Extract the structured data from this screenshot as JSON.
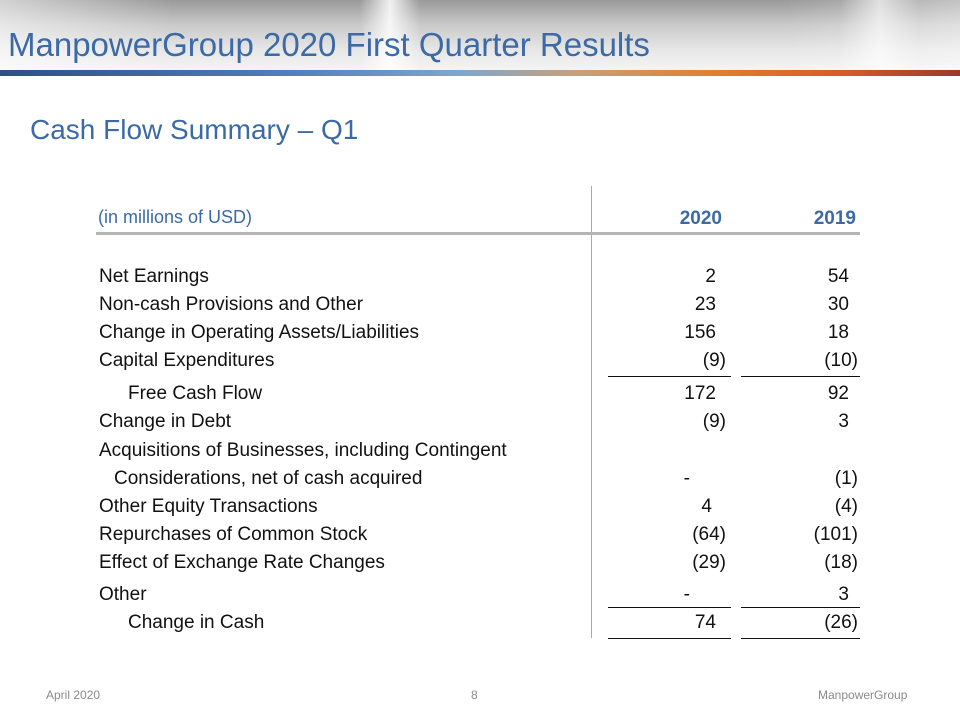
{
  "header": {
    "title": "ManpowerGroup 2020 First Quarter Results"
  },
  "subtitle": "Cash Flow Summary – Q1",
  "table": {
    "units_label": "(in millions of USD)",
    "columns": [
      "2020",
      "2019"
    ],
    "rows": [
      {
        "label": "Net Earnings",
        "v2020": "2",
        "v2019": "54"
      },
      {
        "label": "Non-cash Provisions and Other",
        "v2020": "23",
        "v2019": "30"
      },
      {
        "label": "Change in Operating Assets/Liabilities",
        "v2020": "156",
        "v2019": "18"
      },
      {
        "label": "Capital Expenditures",
        "v2020": "(9)",
        "v2019": "(10)"
      },
      {
        "label": "Free Cash Flow",
        "v2020": "172",
        "v2019": "92"
      },
      {
        "label": "Change in Debt",
        "v2020": "(9)",
        "v2019": "3"
      },
      {
        "label": "Acquisitions of Businesses, including Contingent",
        "v2020": "",
        "v2019": ""
      },
      {
        "label": "Considerations, net of cash acquired",
        "v2020": "-",
        "v2019": "(1)"
      },
      {
        "label": "Other Equity Transactions",
        "v2020": "4",
        "v2019": "(4)"
      },
      {
        "label": "Repurchases of Common Stock",
        "v2020": "(64)",
        "v2019": "(101)"
      },
      {
        "label": "Effect of Exchange Rate Changes",
        "v2020": "(29)",
        "v2019": "(18)"
      },
      {
        "label": "Other",
        "v2020": "-",
        "v2019": "3"
      },
      {
        "label": "Change in Cash",
        "v2020": "74",
        "v2019": "(26)"
      }
    ]
  },
  "footer": {
    "date": "April 2020",
    "page": "8",
    "company": "ManpowerGroup"
  }
}
